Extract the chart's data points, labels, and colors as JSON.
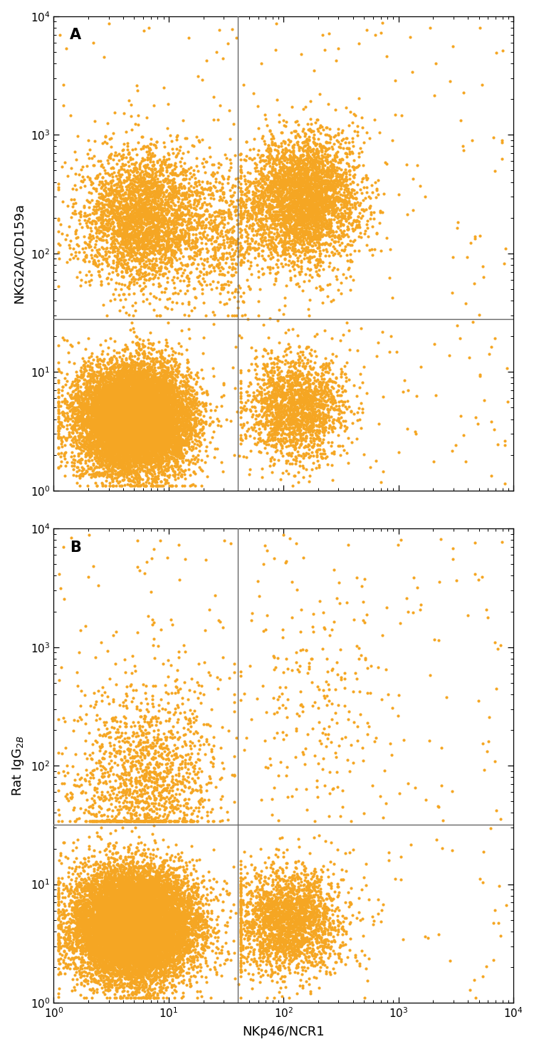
{
  "panel_A_label": "A",
  "panel_B_label": "B",
  "ylabel_A": "NKG2A/CD159a",
  "ylabel_B": "Rat IgG$_{2B}$",
  "xlabel": "NKp46/NCR1",
  "xlim": [
    1,
    10000
  ],
  "ylim": [
    1,
    10000
  ],
  "dot_color": "#F5A623",
  "dot_size": 9.0,
  "dot_alpha": 1.0,
  "gate_x": 40,
  "gate_y_A": 28,
  "gate_y_B": 32,
  "background_color": "#ffffff",
  "line_color": "#666666",
  "line_width": 1.0,
  "label_fontsize": 13,
  "panel_label_fontsize": 15,
  "tick_fontsize": 11
}
